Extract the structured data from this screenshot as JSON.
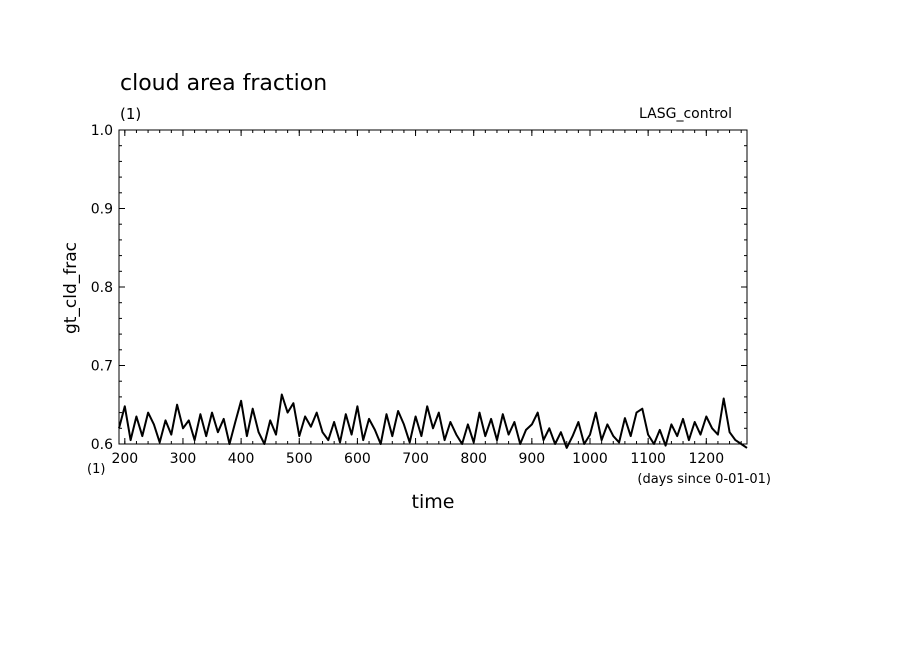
{
  "chart_data": {
    "type": "line",
    "title": "cloud area fraction",
    "title_unit": "(1)",
    "run_label": "LASG_control",
    "ylabel": "gt_cld_frac",
    "xlabel": "time",
    "x_unit": "(days since 0-01-01)",
    "y_axis_unit": "(1)",
    "xlim": [
      190,
      1270
    ],
    "ylim": [
      0.6,
      1.0
    ],
    "xticks": [
      200,
      300,
      400,
      500,
      600,
      700,
      800,
      900,
      1000,
      1100,
      1200
    ],
    "yticks": [
      0.6,
      0.7,
      0.8,
      0.9,
      1.0
    ],
    "ytick_labels": [
      "0.6",
      "0.7",
      "0.8",
      "0.9",
      "1.0"
    ],
    "grid": false,
    "line_color": "#000000",
    "series": [
      {
        "x": [
          190,
          200,
          210,
          220,
          230,
          240,
          250,
          260,
          270,
          280,
          290,
          300,
          310,
          320,
          330,
          340,
          350,
          360,
          370,
          380,
          390,
          400,
          410,
          420,
          430,
          440,
          450,
          460,
          470,
          480,
          490,
          500,
          510,
          520,
          530,
          540,
          550,
          560,
          570,
          580,
          590,
          600,
          610,
          620,
          630,
          640,
          650,
          660,
          670,
          680,
          690,
          700,
          710,
          720,
          730,
          740,
          750,
          760,
          770,
          780,
          790,
          800,
          810,
          820,
          830,
          840,
          850,
          860,
          870,
          880,
          890,
          900,
          910,
          920,
          930,
          940,
          950,
          960,
          970,
          980,
          990,
          1000,
          1010,
          1020,
          1030,
          1040,
          1050,
          1060,
          1070,
          1080,
          1090,
          1100,
          1110,
          1120,
          1130,
          1140,
          1150,
          1160,
          1170,
          1180,
          1190,
          1200,
          1210,
          1220,
          1230,
          1240,
          1250,
          1260,
          1270
        ],
        "y": [
          0.62,
          0.648,
          0.605,
          0.635,
          0.61,
          0.64,
          0.625,
          0.602,
          0.63,
          0.612,
          0.65,
          0.62,
          0.63,
          0.605,
          0.638,
          0.61,
          0.64,
          0.615,
          0.632,
          0.6,
          0.628,
          0.655,
          0.61,
          0.645,
          0.615,
          0.6,
          0.63,
          0.612,
          0.663,
          0.64,
          0.652,
          0.61,
          0.635,
          0.622,
          0.64,
          0.615,
          0.605,
          0.628,
          0.602,
          0.638,
          0.612,
          0.648,
          0.605,
          0.632,
          0.618,
          0.6,
          0.638,
          0.61,
          0.642,
          0.625,
          0.602,
          0.635,
          0.61,
          0.648,
          0.62,
          0.64,
          0.605,
          0.628,
          0.612,
          0.6,
          0.625,
          0.602,
          0.64,
          0.61,
          0.632,
          0.605,
          0.638,
          0.612,
          0.628,
          0.6,
          0.618,
          0.625,
          0.64,
          0.605,
          0.62,
          0.6,
          0.615,
          0.595,
          0.61,
          0.628,
          0.6,
          0.612,
          0.64,
          0.605,
          0.625,
          0.61,
          0.602,
          0.633,
          0.61,
          0.64,
          0.645,
          0.612,
          0.6,
          0.618,
          0.598,
          0.625,
          0.61,
          0.632,
          0.605,
          0.628,
          0.612,
          0.635,
          0.62,
          0.612,
          0.658,
          0.615,
          0.605,
          0.6,
          0.595
        ]
      }
    ]
  }
}
